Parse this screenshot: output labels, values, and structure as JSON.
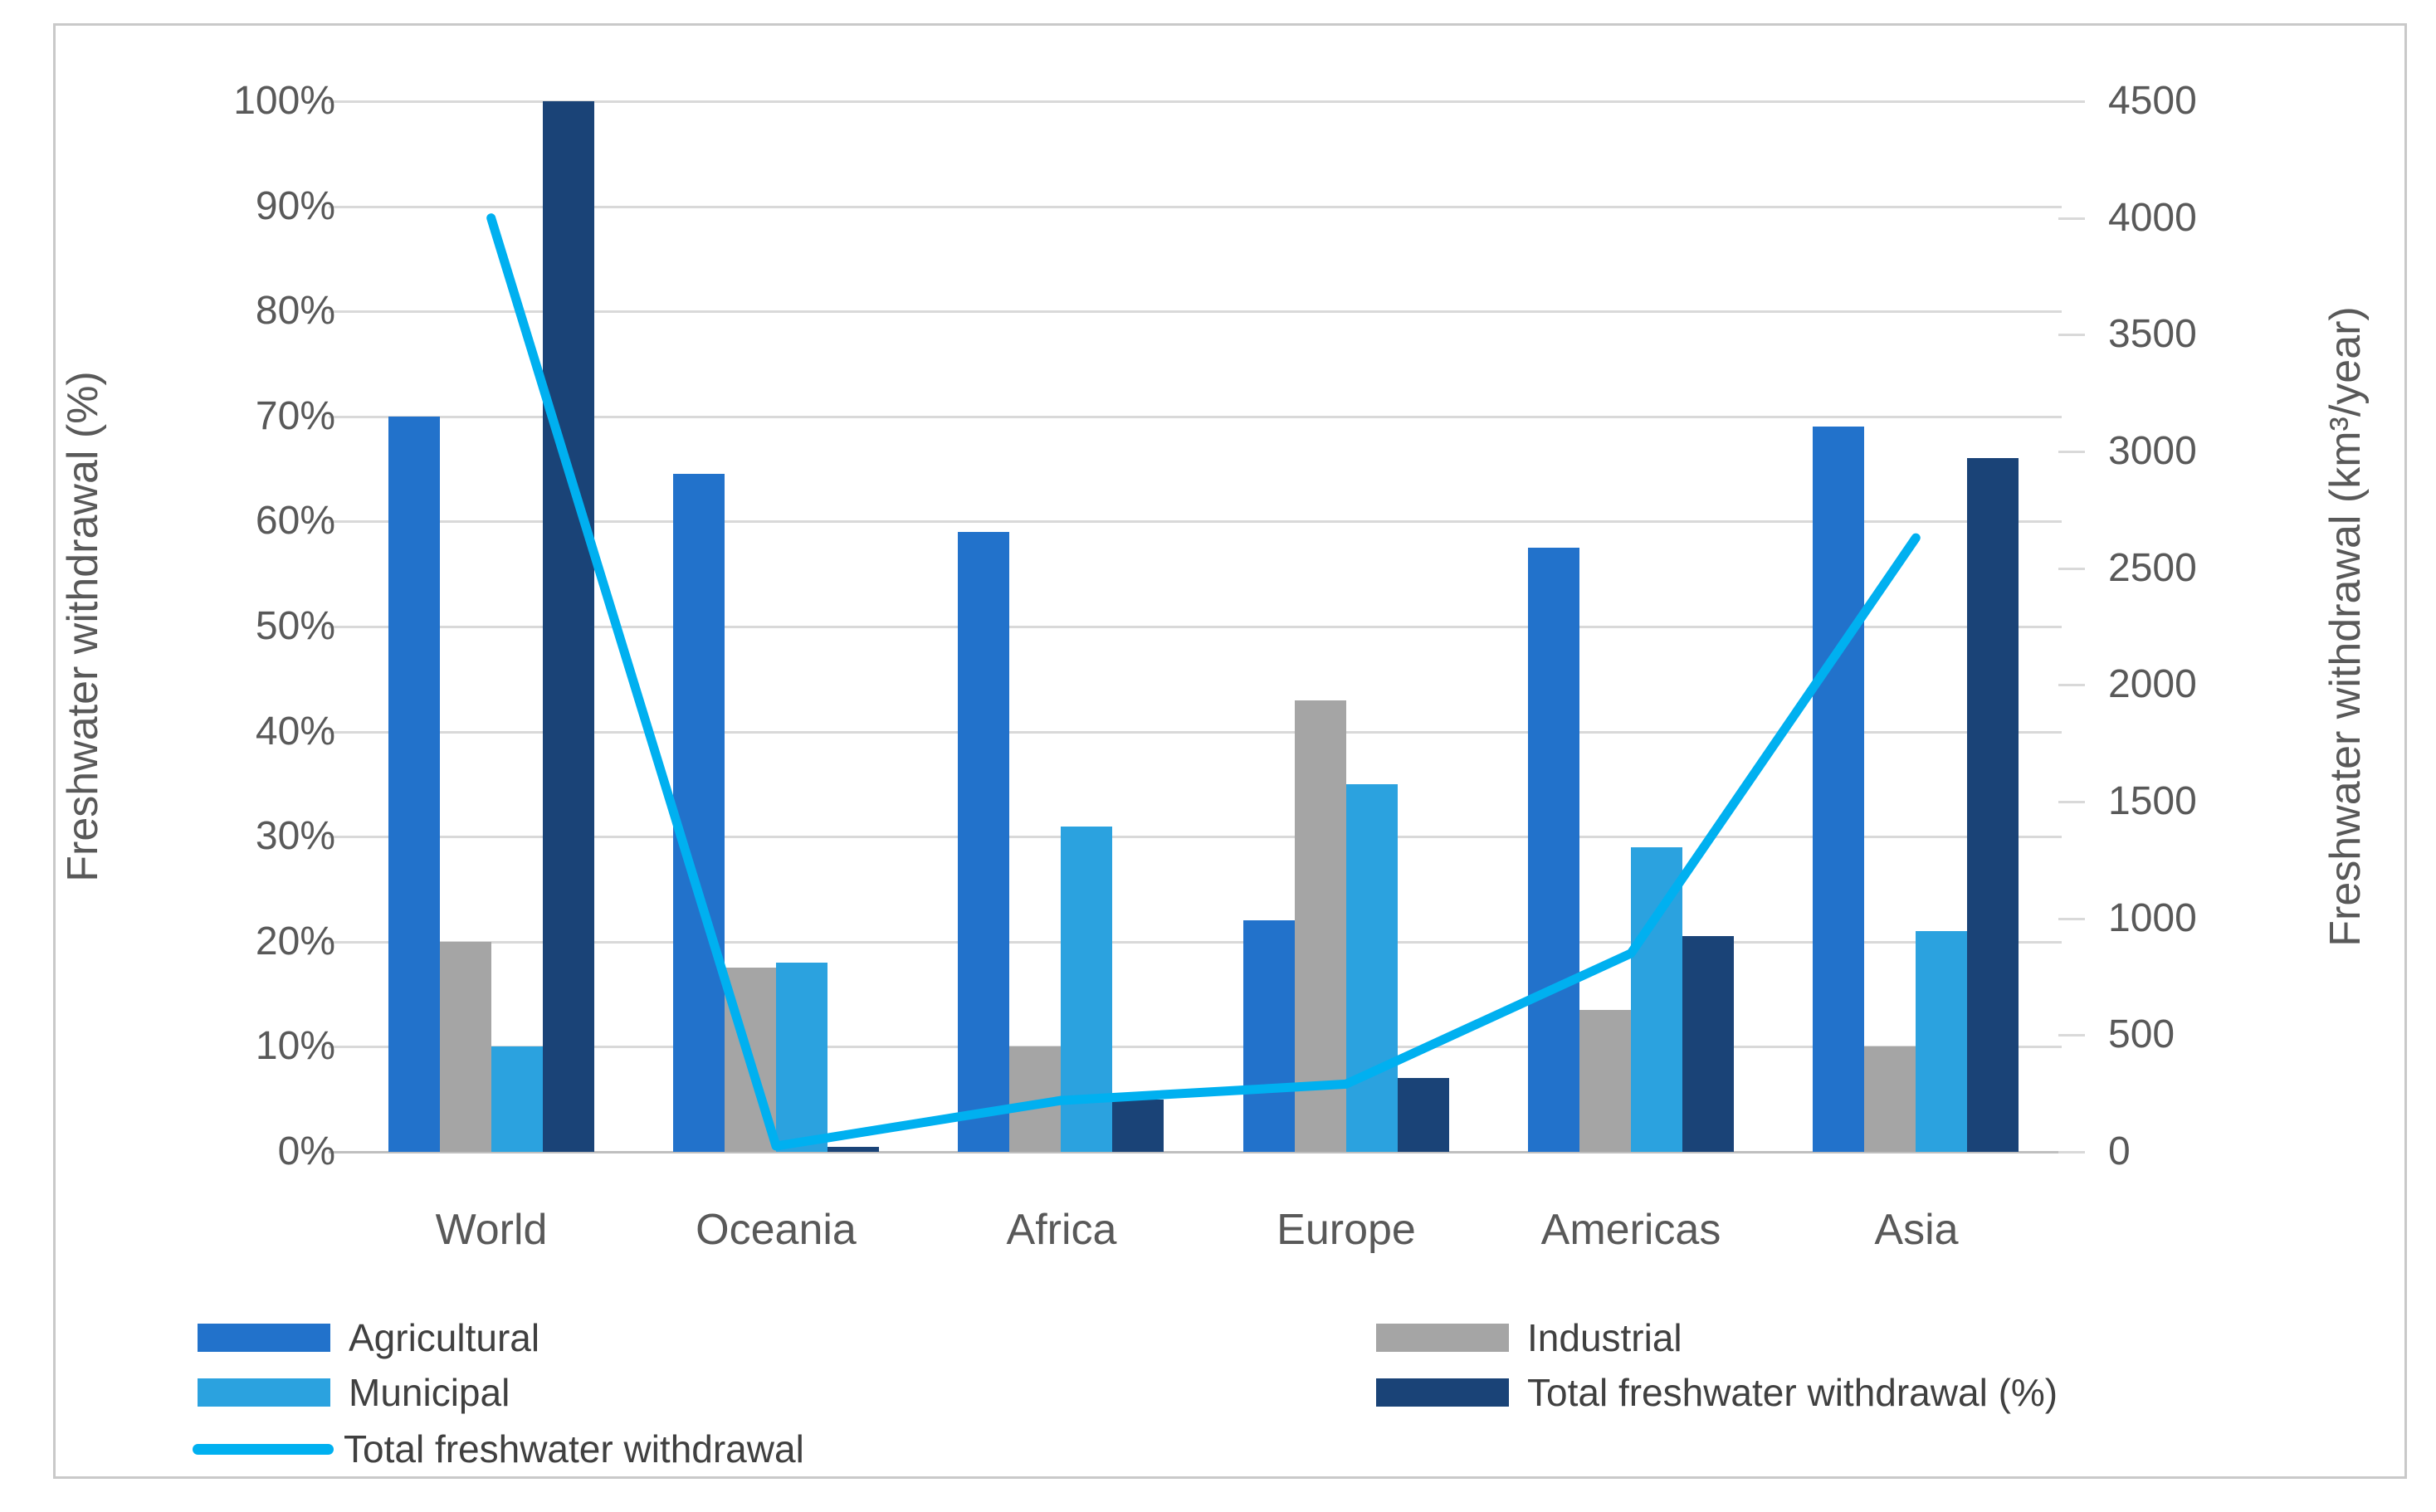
{
  "chart_data": {
    "type": "bar+line combo, dual axis",
    "categories": [
      "World",
      "Oceania",
      "Africa",
      "Europe",
      "Americas",
      "Asia"
    ],
    "bar_series": [
      {
        "name": "Agricultural",
        "axis": "left",
        "color": "#2272cb",
        "values": [
          70,
          64.5,
          59,
          22,
          57.5,
          69
        ]
      },
      {
        "name": "Industrial",
        "axis": "left",
        "color": "#a5a5a5",
        "values": [
          20,
          17.5,
          10,
          43,
          13.5,
          10
        ]
      },
      {
        "name": "Municipal",
        "axis": "left",
        "color": "#2ba2df",
        "values": [
          10,
          18,
          31,
          35,
          29,
          21
        ]
      },
      {
        "name": "Total freshwater withdrawal (%)",
        "axis": "left",
        "color": "#1a4377",
        "values": [
          100,
          0.5,
          5,
          7,
          20.5,
          66
        ]
      }
    ],
    "line_series": {
      "name": "Total freshwater withdrawal",
      "axis": "right",
      "color": "#00b0f0",
      "values": [
        4000,
        25,
        220,
        290,
        850,
        2630
      ]
    },
    "left_axis": {
      "title": "Freshwater withdrawal (%)",
      "range": [
        0,
        100
      ],
      "ticks_bottom_up": [
        "0%",
        "10%",
        "20%",
        "30%",
        "40%",
        "50%",
        "60%",
        "70%",
        "80%",
        "90%",
        "100%"
      ]
    },
    "right_axis": {
      "title": "Freshwater withdrawal (km³/year)",
      "range": [
        0,
        4500
      ],
      "ticks_bottom_up": [
        "0",
        "500",
        "1000",
        "1500",
        "2000",
        "2500",
        "3000",
        "3500",
        "4000",
        "4500"
      ]
    },
    "grid": true,
    "legend_position": "bottom-left, two columns"
  },
  "colors": {
    "gridline": "#d9d9d9",
    "axis_text": "#595959",
    "legend_text": "#404040",
    "figure_border": "#c9c9c9",
    "background": "#ffffff"
  }
}
